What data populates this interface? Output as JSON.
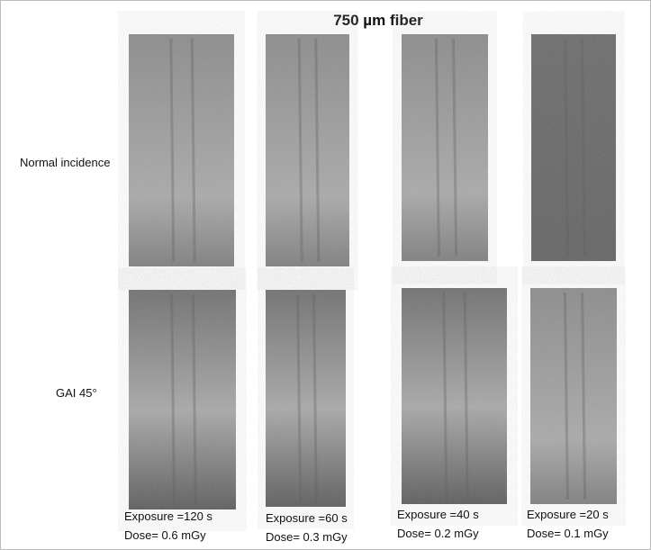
{
  "title": "750 µm fiber",
  "row_labels": [
    "Normal incidence",
    "GAI 45°"
  ],
  "columns": [
    {
      "exposure": "Exposure =120 s",
      "dose": "Dose= 0.6 mGy"
    },
    {
      "exposure": "Exposure =60 s",
      "dose": "Dose= 0.3 mGy"
    },
    {
      "exposure": "Exposure =40 s",
      "dose": "Dose= 0.2 mGy"
    },
    {
      "exposure": "Exposure =20 s",
      "dose": "Dose= 0.1 mGy"
    }
  ]
}
